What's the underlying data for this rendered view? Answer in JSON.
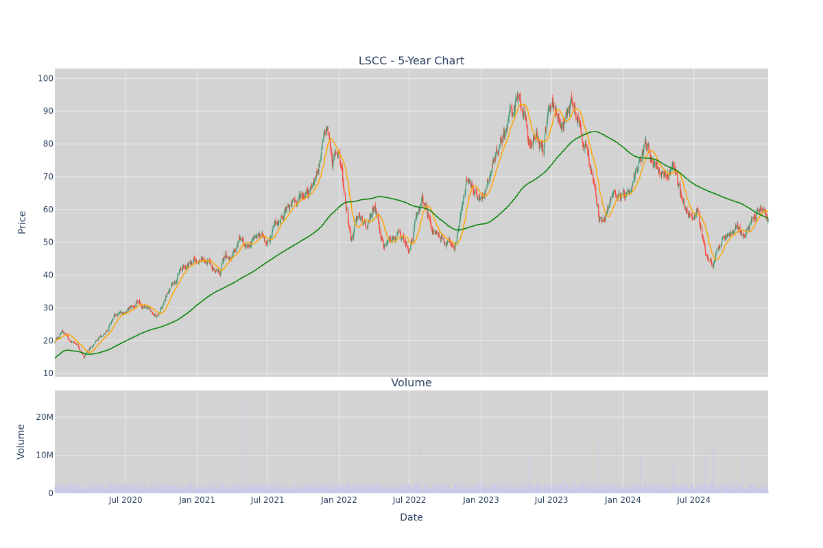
{
  "colors": {
    "plot_bg": "#d3d3d3",
    "grid": "#ececec",
    "up": "#3d9970",
    "down": "#ff4136",
    "ma_short": "#ffa500",
    "ma_long": "#008000",
    "volume": "#c6c6f0",
    "text": "#2a3f5f"
  },
  "chart_data": [
    {
      "type": "candlestick",
      "title": "LSCC - 5-Year Chart",
      "ylabel": "Price",
      "ylim": [
        9,
        103
      ],
      "yticks": [
        10,
        20,
        30,
        40,
        50,
        60,
        70,
        80,
        90,
        100
      ],
      "xlim": [
        "2020-01-01",
        "2025-01-08"
      ],
      "grid": true,
      "price_anchors": [
        [
          "2020-01-01",
          19.5
        ],
        [
          "2020-01-20",
          23
        ],
        [
          "2020-02-10",
          20
        ],
        [
          "2020-03-01",
          19
        ],
        [
          "2020-03-16",
          15
        ],
        [
          "2020-04-01",
          18
        ],
        [
          "2020-05-01",
          21
        ],
        [
          "2020-06-01",
          27
        ],
        [
          "2020-07-01",
          29
        ],
        [
          "2020-08-01",
          31
        ],
        [
          "2020-09-01",
          29
        ],
        [
          "2020-09-20",
          28
        ],
        [
          "2020-10-15",
          34
        ],
        [
          "2020-11-15",
          41
        ],
        [
          "2020-12-15",
          44
        ],
        [
          "2021-01-15",
          45
        ],
        [
          "2021-02-10",
          42
        ],
        [
          "2021-03-01",
          40
        ],
        [
          "2021-03-15",
          47
        ],
        [
          "2021-04-01",
          44
        ],
        [
          "2021-04-20",
          51
        ],
        [
          "2021-05-10",
          47
        ],
        [
          "2021-06-01",
          52
        ],
        [
          "2021-07-01",
          51
        ],
        [
          "2021-08-01",
          57
        ],
        [
          "2021-09-01",
          61
        ],
        [
          "2021-10-01",
          65
        ],
        [
          "2021-11-01",
          69
        ],
        [
          "2021-11-20",
          80
        ],
        [
          "2021-12-01",
          84
        ],
        [
          "2021-12-15",
          75
        ],
        [
          "2021-12-31",
          78
        ],
        [
          "2022-01-15",
          65
        ],
        [
          "2022-02-01",
          52
        ],
        [
          "2022-02-20",
          58
        ],
        [
          "2022-03-15",
          53
        ],
        [
          "2022-04-01",
          62
        ],
        [
          "2022-05-01",
          48
        ],
        [
          "2022-06-01",
          52
        ],
        [
          "2022-07-01",
          48
        ],
        [
          "2022-08-01",
          63
        ],
        [
          "2022-09-01",
          53
        ],
        [
          "2022-10-01",
          51
        ],
        [
          "2022-10-25",
          49
        ],
        [
          "2022-11-15",
          62
        ],
        [
          "2022-12-01",
          70
        ],
        [
          "2022-12-20",
          66
        ],
        [
          "2023-01-01",
          63
        ],
        [
          "2023-02-01",
          75
        ],
        [
          "2023-03-01",
          85
        ],
        [
          "2023-04-01",
          93
        ],
        [
          "2023-04-20",
          90
        ],
        [
          "2023-05-01",
          80
        ],
        [
          "2023-05-20",
          82
        ],
        [
          "2023-06-10",
          78
        ],
        [
          "2023-07-01",
          93
        ],
        [
          "2023-07-20",
          89
        ],
        [
          "2023-08-01",
          86
        ],
        [
          "2023-08-20",
          94
        ],
        [
          "2023-09-01",
          92
        ],
        [
          "2023-09-20",
          83
        ],
        [
          "2023-10-15",
          70
        ],
        [
          "2023-11-01",
          56
        ],
        [
          "2023-11-20",
          60
        ],
        [
          "2023-12-10",
          66
        ],
        [
          "2024-01-01",
          64
        ],
        [
          "2024-01-20",
          62
        ],
        [
          "2024-02-10",
          74
        ],
        [
          "2024-02-25",
          82
        ],
        [
          "2024-03-10",
          77
        ],
        [
          "2024-04-01",
          73
        ],
        [
          "2024-04-20",
          68
        ],
        [
          "2024-05-10",
          75
        ],
        [
          "2024-06-01",
          62
        ],
        [
          "2024-06-25",
          58
        ],
        [
          "2024-07-10",
          60
        ],
        [
          "2024-08-01",
          47
        ],
        [
          "2024-08-20",
          43
        ],
        [
          "2024-09-10",
          50
        ],
        [
          "2024-10-01",
          52
        ],
        [
          "2024-10-25",
          54
        ],
        [
          "2024-11-10",
          51
        ],
        [
          "2024-11-25",
          57
        ],
        [
          "2024-12-10",
          60
        ],
        [
          "2024-12-20",
          61
        ],
        [
          "2025-01-08",
          57
        ]
      ]
    },
    {
      "type": "bar",
      "title": "Volume",
      "xlabel": "Date",
      "ylabel": "Volume",
      "ylim": [
        0,
        27000000
      ],
      "yticks": [
        0,
        10000000,
        20000000
      ],
      "ytick_labels": [
        "0",
        "10M",
        "20M"
      ],
      "xticks": [
        "2020-07-01",
        "2021-01-01",
        "2021-07-01",
        "2022-01-01",
        "2022-07-01",
        "2023-01-01",
        "2023-07-01",
        "2024-01-01",
        "2024-07-01"
      ],
      "xtick_labels": [
        "Jul 2020",
        "Jan 2021",
        "Jul 2021",
        "Jan 2022",
        "Jul 2022",
        "Jan 2023",
        "Jul 2023",
        "Jan 2024",
        "Jul 2024"
      ],
      "base_volume": 1500000,
      "spikes": [
        [
          "2021-05-04",
          25500000
        ],
        [
          "2022-07-28",
          16700000
        ],
        [
          "2022-11-02",
          4500000
        ],
        [
          "2023-05-02",
          9700000
        ],
        [
          "2023-10-31",
          14200000
        ],
        [
          "2024-02-14",
          10300000
        ],
        [
          "2024-05-08",
          8800000
        ],
        [
          "2024-07-30",
          10800000
        ],
        [
          "2024-08-21",
          12800000
        ],
        [
          "2024-11-06",
          10700000
        ],
        [
          "2021-11-02",
          3700000
        ],
        [
          "2020-05-06",
          3500000
        ],
        [
          "2023-02-15",
          3900000
        ],
        [
          "2023-08-01",
          4200000
        ]
      ]
    }
  ]
}
